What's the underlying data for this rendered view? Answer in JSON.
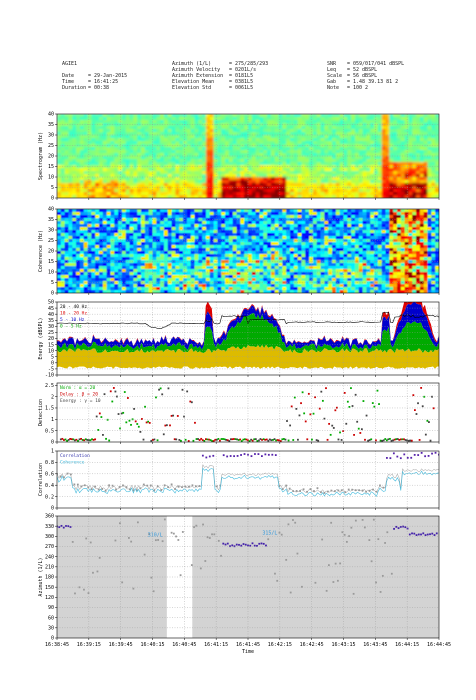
{
  "header": {
    "col1": [
      {
        "k": "AGIE1",
        "v": ""
      },
      {
        "k": "",
        "v": ""
      },
      {
        "k": "Date",
        "v": "= 29-Jan-2015"
      },
      {
        "k": "Time",
        "v": "= 16:41:25"
      },
      {
        "k": "Duration",
        "v": "= 00:38"
      }
    ],
    "col2": [
      {
        "k": "Azimuth (1/L)",
        "v": "= 275/285/293"
      },
      {
        "k": "Azimuth Velocity",
        "v": "= 0201L/s"
      },
      {
        "k": "Azimuth Extension",
        "v": "= 0181L5"
      },
      {
        "k": "Elevation Mean",
        "v": "= 0381L5"
      },
      {
        "k": "Elevation Std",
        "v": "= 0061L5"
      }
    ],
    "col3": [
      {
        "k": "SNR",
        "v": "= 059/017/041 dBSPL"
      },
      {
        "k": "Leq",
        "v": "= 52 dBSPL"
      },
      {
        "k": "Scale",
        "v": "= 56 dBSPL"
      },
      {
        "k": "Gab",
        "v": "= 1.48 39.13 81 2"
      },
      {
        "k": "Note",
        "v": "= 100 2"
      }
    ]
  },
  "chart_data": [
    {
      "type": "heatmap",
      "ylabel": "Spectrogram (Hz)",
      "yticks": [
        0,
        5,
        10,
        15,
        20,
        25,
        30,
        35,
        40
      ],
      "ylim": [
        0,
        40
      ],
      "grid": true
    },
    {
      "type": "heatmap",
      "ylabel": "Coherence (Hz)",
      "yticks": [
        0,
        5,
        10,
        15,
        20,
        25,
        30,
        35,
        40
      ],
      "ylim": [
        0,
        40
      ],
      "grid": true
    },
    {
      "type": "area",
      "ylabel": "Energy (dBSPL)",
      "yticks": [
        -10,
        -5,
        0,
        5,
        10,
        15,
        20,
        25,
        30,
        35,
        40,
        45,
        50
      ],
      "ylim": [
        -10,
        50
      ],
      "legend_position": "top-left",
      "series": [
        {
          "name": "20 - 40 Hz",
          "color": "#000000"
        },
        {
          "name": "10 - 20 Hz",
          "color": "#dd0000"
        },
        {
          "name": "5 - 10 Hz",
          "color": "#0000cc"
        },
        {
          "name": "0 - 5 Hz",
          "color": "#00aa00"
        },
        {
          "name": "",
          "color": "#ddbb00"
        }
      ],
      "grid": true
    },
    {
      "type": "scatter",
      "ylabel": "Detection",
      "yticks": [
        0,
        0.5,
        1,
        1.5,
        2,
        2.5
      ],
      "ylim": [
        0,
        2.6
      ],
      "legend_position": "top-left",
      "series": [
        {
          "name": "Norm  : α = 20",
          "color": "#00aa00"
        },
        {
          "name": "Delay : β = 20",
          "color": "#cc0000"
        },
        {
          "name": "Energy : γ = 10",
          "color": "#444444"
        }
      ],
      "grid": true
    },
    {
      "type": "line",
      "ylabel": "Correlation",
      "yticks": [
        0,
        0.2,
        0.4,
        0.6,
        0.8,
        1
      ],
      "ylim": [
        0,
        1
      ],
      "legend_position": "top-left",
      "series": [
        {
          "name": "Correlation",
          "color": "#3333aa"
        },
        {
          "name": "Coherence",
          "color": "#44bbdd"
        }
      ],
      "grid": true
    },
    {
      "type": "scatter",
      "ylabel": "Azimuth (1/L)",
      "yticks": [
        0,
        30,
        60,
        90,
        120,
        150,
        180,
        210,
        240,
        270,
        300,
        330,
        360
      ],
      "ylim": [
        0,
        360
      ],
      "annotations": [
        {
          "text": "310/L",
          "x_index": 2.85,
          "y": 300
        },
        {
          "text": "315/L",
          "x_index": 6.45,
          "y": 305
        }
      ],
      "highlight": {
        "from_index": 3.45,
        "to_index": 4.25
      },
      "grid": true
    }
  ],
  "x_axis": {
    "label": "Time",
    "ticks": [
      "16:38:45",
      "16:39:15",
      "16:39:45",
      "16:40:15",
      "16:40:45",
      "16:41:15",
      "16:41:45",
      "16:42:15",
      "16:42:45",
      "16:43:15",
      "16:43:45",
      "16:44:15",
      "16:44:45"
    ]
  }
}
